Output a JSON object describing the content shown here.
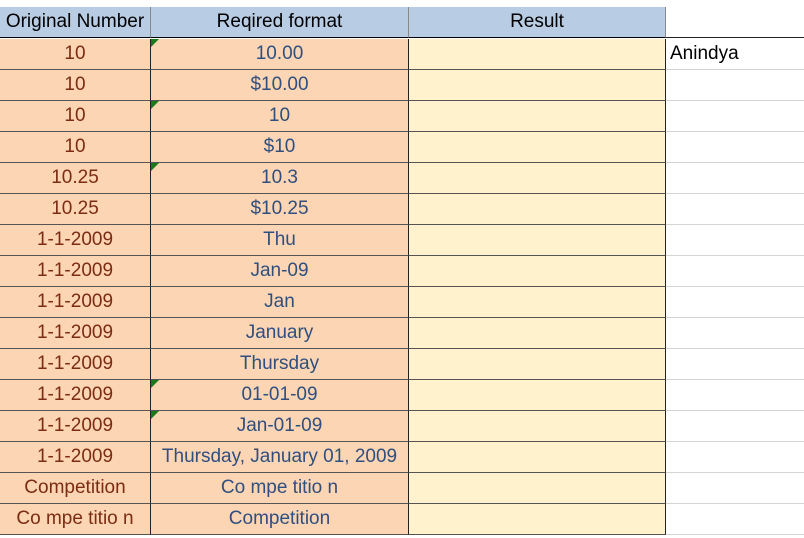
{
  "headers": [
    "Original Number",
    "Reqired format",
    "Result",
    ""
  ],
  "rows": [
    {
      "original": "10",
      "format": "10.00",
      "result": "",
      "extra": "Anindya",
      "flag": true
    },
    {
      "original": "10",
      "format": "$10.00",
      "result": "",
      "extra": "",
      "flag": false
    },
    {
      "original": "10",
      "format": "10",
      "result": "",
      "extra": "",
      "flag": true
    },
    {
      "original": "10",
      "format": "$10",
      "result": "",
      "extra": "",
      "flag": false
    },
    {
      "original": "10.25",
      "format": "10.3",
      "result": "",
      "extra": "",
      "flag": true
    },
    {
      "original": "10.25",
      "format": "$10.25",
      "result": "",
      "extra": "",
      "flag": false
    },
    {
      "original": "1-1-2009",
      "format": "Thu",
      "result": "",
      "extra": "",
      "flag": false
    },
    {
      "original": "1-1-2009",
      "format": "Jan-09",
      "result": "",
      "extra": "",
      "flag": false
    },
    {
      "original": "1-1-2009",
      "format": "Jan",
      "result": "",
      "extra": "",
      "flag": false
    },
    {
      "original": "1-1-2009",
      "format": "January",
      "result": "",
      "extra": "",
      "flag": false
    },
    {
      "original": "1-1-2009",
      "format": "Thursday",
      "result": "",
      "extra": "",
      "flag": false
    },
    {
      "original": "1-1-2009",
      "format": "01-01-09",
      "result": "",
      "extra": "",
      "flag": true
    },
    {
      "original": "1-1-2009",
      "format": "Jan-01-09",
      "result": "",
      "extra": "",
      "flag": true
    },
    {
      "original": "1-1-2009",
      "format": "Thursday, January 01, 2009",
      "result": "",
      "extra": "",
      "flag": false
    },
    {
      "original": "Competition",
      "format": "Co mpe titio n",
      "result": "",
      "extra": "",
      "flag": false
    },
    {
      "original": "Co mpe titio n",
      "format": "Competition",
      "result": "",
      "extra": "",
      "flag": false
    }
  ],
  "colors": {
    "header_bg": "#b8cce4",
    "orange_bg": "#fcd5b4",
    "yellow_bg": "#fff2cc",
    "flag": "#1a7a1a"
  }
}
